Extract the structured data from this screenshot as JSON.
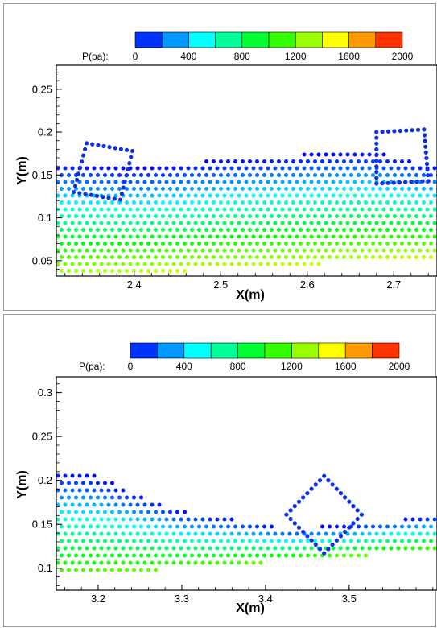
{
  "colorbar": {
    "label": "P(pa):",
    "min": 0,
    "max": 2000,
    "ticks": [
      "0",
      "400",
      "800",
      "1200",
      "1600",
      "2000"
    ],
    "stops": [
      "#0000ff",
      "#0080ff",
      "#00ffff",
      "#00ff80",
      "#00ff00",
      "#80ff00",
      "#ffff00",
      "#ff8000",
      "#ff0000"
    ]
  },
  "chart_data": [
    {
      "type": "scatter",
      "title": "",
      "xlabel": "X(m)",
      "ylabel": "Y(m)",
      "xlim": [
        2.31,
        2.75
      ],
      "ylim": [
        0.032,
        0.278
      ],
      "xticks": [
        "2.4",
        "2.5",
        "2.6",
        "2.7"
      ],
      "yticks": [
        "0.05",
        "0.1",
        "0.15",
        "0.2",
        "0.25"
      ],
      "colorbar_label": "P(pa):",
      "color_range": [
        0,
        2000
      ],
      "series": [
        {
          "name": "",
          "shape": "square-outline",
          "values": [
            [
              2.345,
              0.187
            ],
            [
              2.398,
              0.178
            ],
            [
              2.384,
              0.121
            ],
            [
              2.33,
              0.13
            ]
          ]
        },
        {
          "name": "",
          "shape": "square-outline",
          "values": [
            [
              2.68,
              0.2
            ],
            [
              2.735,
              0.203
            ],
            [
              2.74,
              0.143
            ],
            [
              2.68,
              0.14
            ]
          ]
        },
        {
          "name": "",
          "shape": "particle-field",
          "surface_y": [
            [
              2.31,
              0.165
            ],
            [
              2.39,
              0.158
            ],
            [
              2.41,
              0.158
            ],
            [
              2.5,
              0.168
            ],
            [
              2.6,
              0.174
            ],
            [
              2.67,
              0.178
            ],
            [
              2.75,
              0.16
            ]
          ],
          "bottom_y": [
            [
              2.31,
              0.03
            ],
            [
              2.75,
              0.053
            ]
          ],
          "pressure_at_bottom": 1400
        }
      ]
    },
    {
      "type": "scatter",
      "title": "",
      "xlabel": "X(m)",
      "ylabel": "Y(m)",
      "xlim": [
        3.15,
        3.605
      ],
      "ylim": [
        0.075,
        0.318
      ],
      "xticks": [
        "3.2",
        "3.3",
        "3.4",
        "3.5"
      ],
      "yticks": [
        "0.1",
        "0.15",
        "0.2",
        "0.25",
        "0.3"
      ],
      "colorbar_label": "P(pa):",
      "color_range": [
        0,
        2000
      ],
      "series": [
        {
          "name": "",
          "shape": "diamond-outline",
          "values": [
            [
              3.47,
              0.205
            ],
            [
              3.515,
              0.161
            ],
            [
              3.47,
              0.117
            ],
            [
              3.425,
              0.161
            ]
          ]
        },
        {
          "name": "",
          "shape": "particle-field",
          "surface_y": [
            [
              3.15,
              0.212
            ],
            [
              3.2,
              0.205
            ],
            [
              3.25,
              0.183
            ],
            [
              3.3,
              0.165
            ],
            [
              3.36,
              0.157
            ],
            [
              3.43,
              0.145
            ],
            [
              3.5,
              0.15
            ],
            [
              3.605,
              0.16
            ]
          ],
          "bottom_y": [
            [
              3.15,
              0.09
            ],
            [
              3.605,
              0.12
            ]
          ],
          "pressure_at_bottom": 1200
        }
      ]
    }
  ]
}
